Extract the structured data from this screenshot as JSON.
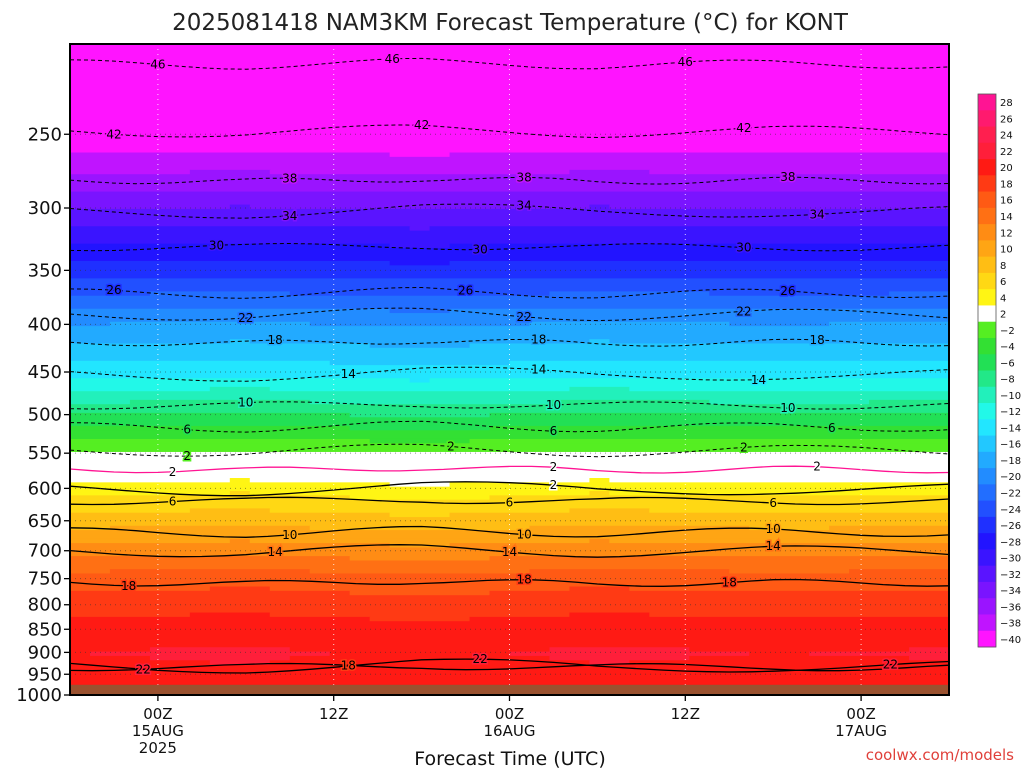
{
  "chart_data": {
    "type": "heatmap",
    "title": "2025081418 NAM3KM Forecast Temperature (°C) for KONT",
    "xlabel": "Forecast Time (UTC)",
    "ylabel": "",
    "credit": "coolwx.com/models",
    "y_scale": "log",
    "y_reversed": true,
    "ylim": [
      1000,
      200
    ],
    "yticks": [
      250,
      300,
      350,
      400,
      450,
      500,
      550,
      600,
      650,
      700,
      750,
      800,
      850,
      900,
      950,
      1000
    ],
    "ytick_labels": [
      "250",
      "300",
      "350",
      "400",
      "450",
      "500",
      "550",
      "600",
      "650",
      "700",
      "750",
      "800",
      "850",
      "900",
      "950",
      "1000"
    ],
    "x_hours": [
      -6,
      -3,
      0,
      3,
      6,
      9,
      12,
      15,
      18,
      21,
      24,
      27,
      30,
      33,
      36,
      39,
      42,
      45,
      48,
      51,
      54
    ],
    "xlim_hours": [
      -6,
      54
    ],
    "x_start_time": "2025-08-14 18Z",
    "xticks": [
      {
        "hour": 0,
        "lines": [
          "00Z",
          "15AUG",
          "2025"
        ]
      },
      {
        "hour": 12,
        "lines": [
          "12Z"
        ]
      },
      {
        "hour": 24,
        "lines": [
          "00Z",
          "16AUG"
        ]
      },
      {
        "hour": 36,
        "lines": [
          "12Z"
        ]
      },
      {
        "hour": 48,
        "lines": [
          "00Z",
          "17AUG"
        ]
      }
    ],
    "grid": true,
    "below_ground_pressure": 975,
    "below_ground_color": "#9a5230",
    "colorbar": {
      "levels": [
        28,
        26,
        24,
        22,
        20,
        18,
        16,
        14,
        12,
        10,
        8,
        6,
        4,
        2,
        -2,
        -4,
        -6,
        -8,
        -10,
        -12,
        -14,
        -16,
        -18,
        -20,
        -22,
        -24,
        -26,
        -28,
        -30,
        -32,
        -34,
        -36,
        -38,
        -40
      ],
      "labels": [
        "28",
        "26",
        "24",
        "22",
        "20",
        "18",
        "16",
        "14",
        "12",
        "10",
        "8",
        "6",
        "4",
        "2",
        "−2",
        "−4",
        "−6",
        "−8",
        "−10",
        "−12",
        "−14",
        "−16",
        "−18",
        "−20",
        "−22",
        "−24",
        "−26",
        "−28",
        "−30",
        "−32",
        "−34",
        "−36",
        "−38",
        "−40"
      ],
      "colors": [
        "#ff1493",
        "#ff1a6e",
        "#ff1f4f",
        "#ff1f3a",
        "#ff1a14",
        "#ff3a14",
        "#ff5a14",
        "#ff7014",
        "#ff8c14",
        "#ffa514",
        "#ffbe14",
        "#ffd814",
        "#fff514",
        "#ffffff",
        "#55ee22",
        "#33e033",
        "#22e055",
        "#22e888",
        "#22f0bb",
        "#22f8e8",
        "#22e6ff",
        "#22c8ff",
        "#22aaff",
        "#228cff",
        "#226eff",
        "#2250ff",
        "#1f30ff",
        "#2214ff",
        "#3a14ff",
        "#5a14ff",
        "#7a14ff",
        "#9a14ff",
        "#c014ff",
        "#ff14ff"
      ]
    },
    "profile": {
      "pressure": [
        200,
        250,
        300,
        350,
        400,
        450,
        500,
        540,
        553,
        560,
        575,
        600,
        650,
        700,
        750,
        800,
        850,
        900,
        950,
        975
      ],
      "temperature": [
        -48,
        -42,
        -34,
        -27,
        -20,
        -15,
        -8,
        -3,
        -1,
        1,
        2,
        5,
        9,
        13,
        17,
        19,
        21,
        22,
        21.5,
        21
      ],
      "note_hours": [
        -6,
        6,
        18,
        30,
        42,
        54
      ],
      "offsets": [
        0,
        0.5,
        -0.5,
        0.5,
        0,
        0.3
      ]
    },
    "contours": [
      {
        "value": -46,
        "label": "46",
        "style": "dashed",
        "pressure": 210,
        "label_hours": [
          0,
          16,
          36
        ]
      },
      {
        "value": -42,
        "label": "42",
        "style": "dashed",
        "pressure": 248,
        "label_hours": [
          -3,
          18,
          40
        ]
      },
      {
        "value": -38,
        "label": "38",
        "style": "dashed",
        "pressure": 280,
        "label_hours": [
          9,
          25,
          43
        ]
      },
      {
        "value": -34,
        "label": "34",
        "style": "dashed",
        "pressure": 302,
        "label_hours": [
          9,
          25,
          45
        ]
      },
      {
        "value": -30,
        "label": "30",
        "style": "dashed",
        "pressure": 330,
        "label_hours": [
          4,
          22,
          40
        ]
      },
      {
        "value": -26,
        "label": "26",
        "style": "dashed",
        "pressure": 370,
        "label_hours": [
          -3,
          21,
          43
        ]
      },
      {
        "value": -22,
        "label": "22",
        "style": "dashed",
        "pressure": 390,
        "label_hours": [
          6,
          25,
          40
        ]
      },
      {
        "value": -18,
        "label": "18",
        "style": "dashed",
        "pressure": 418,
        "label_hours": [
          8,
          26,
          45
        ]
      },
      {
        "value": -14,
        "label": "14",
        "style": "dashed",
        "pressure": 452,
        "label_hours": [
          13,
          26,
          41
        ]
      },
      {
        "value": -10,
        "label": "10",
        "style": "dashed",
        "pressure": 488,
        "label_hours": [
          6,
          27,
          43
        ]
      },
      {
        "value": -6,
        "label": "6",
        "style": "dashed",
        "pressure": 515,
        "label_hours": [
          2,
          27,
          46
        ]
      },
      {
        "value": -2,
        "label": "2",
        "style": "dashed",
        "pressure": 546,
        "label_hours": [
          2,
          20,
          40
        ]
      },
      {
        "value": 2,
        "label": "2",
        "style": "solid-pink",
        "pressure": 572,
        "label_hours": [
          1,
          27,
          45
        ]
      },
      {
        "value": 2,
        "label": "2",
        "style": "solid",
        "pressure": 600,
        "label_hours": [
          27
        ]
      },
      {
        "value": 6,
        "label": "6",
        "style": "solid",
        "pressure": 618,
        "label_hours": [
          1,
          24,
          42
        ]
      },
      {
        "value": 10,
        "label": "10",
        "style": "solid",
        "pressure": 668,
        "label_hours": [
          9,
          25,
          42
        ]
      },
      {
        "value": 14,
        "label": "14",
        "style": "solid",
        "pressure": 700,
        "label_hours": [
          8,
          24,
          42
        ]
      },
      {
        "value": 18,
        "label": "18",
        "style": "solid",
        "pressure": 757,
        "label_hours": [
          -2,
          25,
          39
        ]
      },
      {
        "value": 22,
        "label": "22",
        "style": "solid",
        "pressure": 930,
        "label_hours": [
          -1,
          22,
          50
        ]
      },
      {
        "value": 18,
        "label": "18",
        "style": "solid",
        "pressure": 932,
        "label_hours": [
          13
        ]
      }
    ]
  }
}
